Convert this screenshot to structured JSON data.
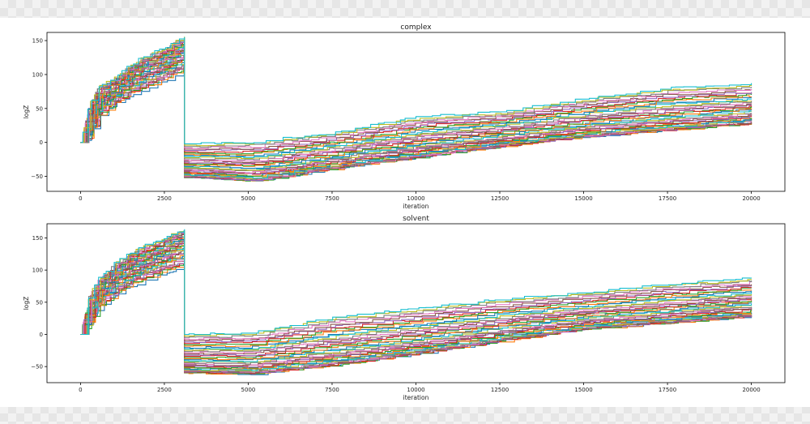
{
  "chart_data": [
    {
      "type": "line",
      "title": "complex",
      "xlabel": "iteration",
      "ylabel": "logZ",
      "xlim": [
        -1000,
        21000
      ],
      "ylim": [
        -72,
        162
      ],
      "xticks": [
        0,
        2500,
        5000,
        7500,
        10000,
        12500,
        15000,
        17500,
        20000
      ],
      "xtick_labels": [
        "0",
        "2500",
        "5000",
        "7500",
        "10000",
        "12500",
        "15000",
        "17500",
        "20000"
      ],
      "yticks": [
        -50,
        0,
        50,
        100,
        150
      ],
      "ytick_labels": [
        "−50",
        "0",
        "50",
        "100",
        "150"
      ],
      "grid": false,
      "legend": false,
      "series_count": 40,
      "phase1_end_iteration": 3100,
      "upper_envelope": {
        "x": [
          0,
          250,
          500,
          1000,
          1500,
          2000,
          2500,
          2800,
          3100
        ],
        "y": [
          0,
          55,
          82,
          95,
          115,
          130,
          138,
          150,
          155
        ]
      },
      "lower_envelope": {
        "x": [
          0,
          250,
          500,
          1000,
          1500,
          2000,
          2500,
          2800,
          3100
        ],
        "y": [
          0,
          5,
          35,
          55,
          70,
          80,
          90,
          98,
          103
        ]
      },
      "phase2_top": {
        "x": [
          3100,
          5000,
          7500,
          10000,
          12500,
          15000,
          17500,
          20000
        ],
        "y": [
          -2,
          0,
          15,
          38,
          45,
          65,
          80,
          86
        ]
      },
      "phase2_bottom": {
        "x": [
          3100,
          5000,
          7500,
          10000,
          12500,
          15000,
          17500,
          20000
        ],
        "y": [
          -52,
          -58,
          -38,
          -22,
          -5,
          8,
          18,
          28
        ]
      }
    },
    {
      "type": "line",
      "title": "solvent",
      "xlabel": "iteration",
      "ylabel": "logZ",
      "xlim": [
        -1000,
        21000
      ],
      "ylim": [
        -75,
        172
      ],
      "xticks": [
        0,
        2500,
        5000,
        7500,
        10000,
        12500,
        15000,
        17500,
        20000
      ],
      "xtick_labels": [
        "0",
        "2500",
        "5000",
        "7500",
        "10000",
        "12500",
        "15000",
        "17500",
        "20000"
      ],
      "yticks": [
        -50,
        0,
        50,
        100,
        150
      ],
      "ytick_labels": [
        "−50",
        "0",
        "50",
        "100",
        "150"
      ],
      "grid": false,
      "legend": false,
      "series_count": 40,
      "phase1_end_iteration": 3100,
      "upper_envelope": {
        "x": [
          0,
          250,
          500,
          1000,
          1500,
          2000,
          2500,
          2800,
          3100
        ],
        "y": [
          0,
          60,
          85,
          110,
          128,
          140,
          150,
          158,
          162
        ]
      },
      "lower_envelope": {
        "x": [
          0,
          250,
          500,
          1000,
          1500,
          2000,
          2500,
          2800,
          3100
        ],
        "y": [
          0,
          15,
          38,
          60,
          75,
          85,
          95,
          100,
          103
        ]
      },
      "phase2_top": {
        "x": [
          3100,
          5000,
          7500,
          10000,
          12500,
          15000,
          17500,
          20000
        ],
        "y": [
          0,
          2,
          28,
          40,
          55,
          65,
          78,
          88
        ]
      },
      "phase2_bottom": {
        "x": [
          3100,
          5000,
          7500,
          10000,
          12500,
          15000,
          17500,
          20000
        ],
        "y": [
          -60,
          -62,
          -48,
          -30,
          -10,
          8,
          18,
          28
        ]
      }
    }
  ],
  "colors": [
    "#1f77b4",
    "#ff7f0e",
    "#2ca02c",
    "#d62728",
    "#9467bd",
    "#8c564b",
    "#e377c2",
    "#7f7f7f",
    "#bcbd22",
    "#17becf"
  ]
}
